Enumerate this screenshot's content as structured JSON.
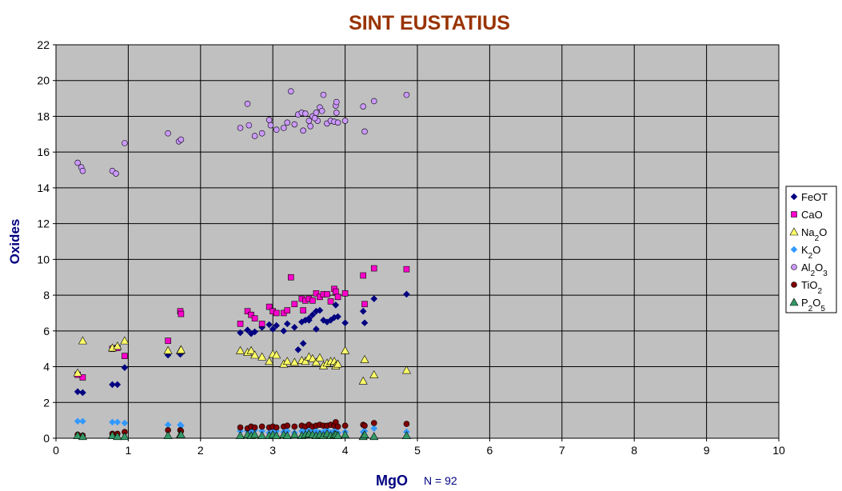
{
  "chart_data": {
    "type": "scatter",
    "title": "SINT EUSTATIUS",
    "xlabel": "MgO",
    "ylabel": "Oxides",
    "note": "N = 92",
    "xlim": [
      0,
      10
    ],
    "ylim": [
      0,
      22
    ],
    "xticks": [
      0,
      1,
      2,
      3,
      4,
      5,
      6,
      7,
      8,
      9,
      10
    ],
    "yticks": [
      0,
      2,
      4,
      6,
      8,
      10,
      12,
      14,
      16,
      18,
      20,
      22
    ],
    "grid": true,
    "legend_position": "right",
    "colors": {
      "title": "#993300",
      "axis_label": "#000080",
      "plot_bg": "#c0c0c0",
      "grid": "#000000",
      "FeOT": "#000080",
      "CaO": "#ff00cc",
      "Na2O": "#ffff66",
      "K2O": "#3399ff",
      "Al2O3": "#cc99ff",
      "TiO2": "#800000",
      "P2O5": "#339966"
    },
    "series": [
      {
        "name": "FeOT",
        "sub": [
          "FeOT"
        ],
        "marker": "diamond",
        "color": "#000080",
        "x": [
          0.3,
          0.37,
          0.78,
          0.85,
          0.95,
          1.55,
          1.72,
          1.73,
          2.55,
          2.65,
          2.7,
          2.75,
          2.85,
          2.95,
          3.0,
          3.05,
          3.15,
          3.2,
          3.3,
          3.4,
          3.45,
          3.5,
          3.55,
          3.6,
          3.65,
          3.7,
          3.75,
          3.8,
          3.85,
          3.87,
          3.9,
          4.0,
          4.25,
          4.27,
          4.4,
          4.85,
          3.35,
          3.42,
          3.5,
          3.6
        ],
        "y": [
          2.6,
          2.55,
          3.0,
          3.0,
          3.95,
          4.65,
          4.7,
          4.75,
          5.9,
          6.05,
          5.85,
          5.95,
          6.2,
          6.35,
          6.1,
          6.3,
          6.0,
          6.4,
          6.2,
          6.5,
          6.6,
          6.7,
          6.9,
          7.1,
          7.15,
          6.6,
          6.5,
          6.6,
          6.75,
          7.45,
          6.8,
          6.45,
          7.1,
          6.45,
          7.8,
          8.05,
          4.95,
          5.3,
          6.6,
          6.1
        ]
      },
      {
        "name": "CaO",
        "sub": [
          "CaO"
        ],
        "marker": "square",
        "color": "#ff00cc",
        "x": [
          0.3,
          0.37,
          0.78,
          0.85,
          0.95,
          1.55,
          1.72,
          1.73,
          2.55,
          2.65,
          2.7,
          2.75,
          2.85,
          2.95,
          3.0,
          3.05,
          3.15,
          3.2,
          3.25,
          3.3,
          3.4,
          3.45,
          3.5,
          3.55,
          3.6,
          3.65,
          3.7,
          3.75,
          3.8,
          3.85,
          3.87,
          3.9,
          4.0,
          4.25,
          4.27,
          4.4,
          4.85,
          3.42
        ],
        "y": [
          3.55,
          3.4,
          5.0,
          5.05,
          4.6,
          5.45,
          7.1,
          6.95,
          6.4,
          7.1,
          6.9,
          6.7,
          6.4,
          7.35,
          7.1,
          7.0,
          7.0,
          7.15,
          9.0,
          7.5,
          7.8,
          7.7,
          7.8,
          7.7,
          8.1,
          7.9,
          8.05,
          8.05,
          7.65,
          8.35,
          8.2,
          7.9,
          8.1,
          9.1,
          7.5,
          9.5,
          9.45,
          7.15
        ]
      },
      {
        "name": "Na2O",
        "sub": [
          "Na",
          "2",
          "O"
        ],
        "marker": "triangle",
        "color": "#ffff66",
        "x": [
          0.3,
          0.37,
          0.78,
          0.85,
          0.95,
          1.55,
          1.72,
          1.73,
          2.55,
          2.65,
          2.7,
          2.75,
          2.85,
          2.95,
          3.0,
          3.05,
          3.15,
          3.2,
          3.3,
          3.4,
          3.45,
          3.5,
          3.55,
          3.6,
          3.65,
          3.7,
          3.75,
          3.8,
          3.85,
          3.87,
          3.9,
          4.0,
          4.25,
          4.27,
          4.4,
          4.85
        ],
        "y": [
          3.65,
          5.45,
          5.05,
          5.15,
          5.45,
          4.9,
          4.9,
          4.95,
          4.9,
          4.8,
          4.9,
          4.65,
          4.55,
          4.3,
          4.7,
          4.65,
          4.15,
          4.3,
          4.25,
          4.35,
          4.3,
          4.55,
          4.45,
          4.25,
          4.5,
          4.05,
          4.2,
          4.3,
          4.3,
          4.05,
          4.15,
          4.9,
          3.2,
          4.4,
          3.55,
          3.8
        ]
      },
      {
        "name": "K2O",
        "sub": [
          "K",
          "2",
          "O"
        ],
        "marker": "diamond",
        "color": "#3399ff",
        "x": [
          0.3,
          0.37,
          0.78,
          0.85,
          0.95,
          1.55,
          1.72,
          1.73,
          2.55,
          2.65,
          2.7,
          2.75,
          2.85,
          2.95,
          3.0,
          3.05,
          3.15,
          3.2,
          3.3,
          3.4,
          3.45,
          3.5,
          3.55,
          3.6,
          3.65,
          3.7,
          3.75,
          3.8,
          3.85,
          3.87,
          3.9,
          4.0,
          4.25,
          4.27,
          4.4,
          4.85
        ],
        "y": [
          0.95,
          0.95,
          0.9,
          0.9,
          0.85,
          0.75,
          0.75,
          0.7,
          0.4,
          0.4,
          0.35,
          0.45,
          0.4,
          0.3,
          0.35,
          0.4,
          0.35,
          0.4,
          0.3,
          0.4,
          0.35,
          0.4,
          0.35,
          0.4,
          0.3,
          0.35,
          0.45,
          0.3,
          0.4,
          0.35,
          0.3,
          0.35,
          0.35,
          0.4,
          0.55,
          0.35
        ]
      },
      {
        "name": "Al2O3",
        "sub": [
          "Al",
          "2",
          "O",
          "3"
        ],
        "marker": "circle",
        "color": "#cc99ff",
        "x": [
          0.3,
          0.35,
          0.37,
          0.78,
          0.83,
          0.95,
          1.55,
          1.7,
          1.73,
          2.55,
          2.65,
          2.67,
          2.75,
          2.85,
          2.95,
          2.97,
          3.05,
          3.15,
          3.2,
          3.25,
          3.3,
          3.35,
          3.4,
          3.42,
          3.45,
          3.5,
          3.52,
          3.55,
          3.6,
          3.62,
          3.65,
          3.68,
          3.7,
          3.75,
          3.8,
          3.85,
          3.87,
          3.88,
          3.9,
          4.0,
          4.25,
          4.27,
          4.4,
          4.85,
          3.58,
          3.88
        ],
        "y": [
          15.4,
          15.15,
          14.95,
          14.95,
          14.8,
          16.5,
          17.05,
          16.6,
          16.7,
          17.35,
          18.7,
          17.5,
          16.9,
          17.05,
          17.8,
          17.5,
          17.25,
          17.35,
          17.65,
          19.4,
          17.55,
          18.1,
          18.2,
          17.2,
          18.15,
          17.75,
          17.45,
          18.0,
          18.2,
          17.75,
          18.5,
          18.3,
          19.2,
          17.6,
          17.75,
          17.7,
          18.6,
          18.8,
          17.65,
          17.75,
          18.55,
          17.15,
          18.85,
          19.2,
          17.9,
          18.2
        ]
      },
      {
        "name": "TiO2",
        "sub": [
          "TiO",
          "2"
        ],
        "marker": "circle",
        "color": "#800000",
        "x": [
          0.3,
          0.37,
          0.78,
          0.85,
          0.95,
          1.55,
          1.72,
          1.73,
          2.55,
          2.65,
          2.7,
          2.75,
          2.85,
          2.95,
          3.0,
          3.05,
          3.15,
          3.2,
          3.3,
          3.4,
          3.45,
          3.5,
          3.55,
          3.6,
          3.65,
          3.7,
          3.75,
          3.8,
          3.85,
          3.87,
          3.9,
          4.0,
          4.25,
          4.27,
          4.4,
          4.85
        ],
        "y": [
          0.2,
          0.15,
          0.25,
          0.25,
          0.35,
          0.45,
          0.45,
          0.4,
          0.6,
          0.55,
          0.65,
          0.6,
          0.65,
          0.6,
          0.65,
          0.6,
          0.65,
          0.7,
          0.65,
          0.7,
          0.65,
          0.75,
          0.65,
          0.7,
          0.75,
          0.7,
          0.7,
          0.75,
          0.7,
          0.9,
          0.65,
          0.7,
          0.75,
          0.7,
          0.85,
          0.8
        ]
      },
      {
        "name": "P2O5",
        "sub": [
          "P",
          "2",
          "O",
          "5"
        ],
        "marker": "triangle",
        "color": "#339966",
        "x": [
          0.3,
          0.37,
          0.78,
          0.85,
          0.95,
          1.55,
          1.72,
          1.73,
          2.55,
          2.65,
          2.7,
          2.75,
          2.85,
          2.95,
          3.0,
          3.05,
          3.15,
          3.2,
          3.3,
          3.4,
          3.45,
          3.5,
          3.55,
          3.6,
          3.65,
          3.7,
          3.75,
          3.8,
          3.85,
          3.87,
          3.9,
          4.0,
          4.25,
          4.27,
          4.4,
          4.85
        ],
        "y": [
          0.15,
          0.1,
          0.15,
          0.1,
          0.1,
          0.15,
          0.2,
          0.2,
          0.15,
          0.2,
          0.15,
          0.2,
          0.15,
          0.15,
          0.2,
          0.15,
          0.2,
          0.15,
          0.2,
          0.15,
          0.2,
          0.25,
          0.2,
          0.15,
          0.2,
          0.15,
          0.25,
          0.15,
          0.2,
          0.2,
          0.15,
          0.2,
          0.1,
          0.2,
          0.1,
          0.15
        ]
      }
    ]
  }
}
